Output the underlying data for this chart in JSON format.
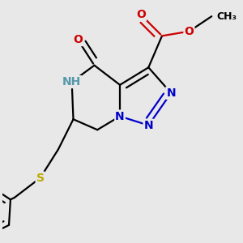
{
  "background_color": "#e8e8e8",
  "bond_color": "#000000",
  "bond_width": 1.6,
  "atom_colors": {
    "N": "#0000cc",
    "O": "#cc0000",
    "S": "#bbaa00",
    "NH": "#5599aa",
    "C": "#000000"
  },
  "font_size_atom": 10,
  "font_size_methyl": 9
}
